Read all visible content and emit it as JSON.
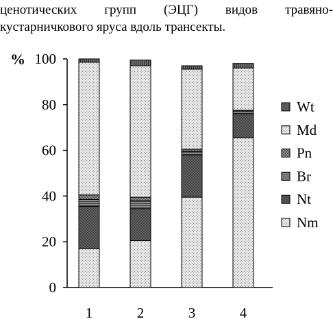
{
  "caption": {
    "line1": "ценотических групп (ЭЦГ) видов травяно-",
    "line2": "кустарничкового яруса вдоль трансекты."
  },
  "chart_data": {
    "type": "bar",
    "stacked": true,
    "ylabel": "%",
    "xlabel": "",
    "ylim": [
      0,
      100
    ],
    "yticks": [
      0,
      20,
      40,
      60,
      80,
      100
    ],
    "categories": [
      "1",
      "2",
      "3",
      "4"
    ],
    "grid": false,
    "legend": "right",
    "series": [
      {
        "name": "Nm",
        "values": [
          17,
          20.5,
          39.5,
          65.5
        ],
        "pattern": "light-dots"
      },
      {
        "name": "Nt",
        "values": [
          18.5,
          14,
          18.5,
          10.5
        ],
        "pattern": "dark-crosshatch"
      },
      {
        "name": "Br",
        "values": [
          3,
          3.5,
          1.5,
          1
        ],
        "pattern": "dark-horizontal"
      },
      {
        "name": "Pn",
        "values": [
          2,
          1.5,
          1,
          0.5
        ],
        "pattern": "crosshatch"
      },
      {
        "name": "Md",
        "values": [
          58,
          57.5,
          35,
          18.5
        ],
        "pattern": "light-dots"
      },
      {
        "name": "Wt",
        "values": [
          1.5,
          2.5,
          1.5,
          2
        ],
        "pattern": "dark-vertical"
      }
    ]
  }
}
